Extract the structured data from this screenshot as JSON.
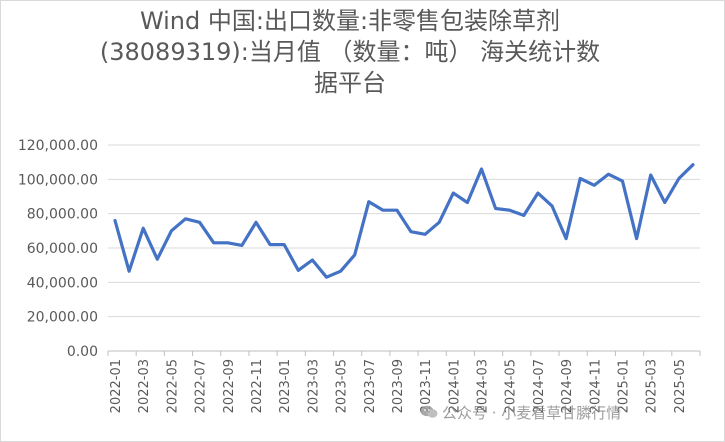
{
  "chart_data": {
    "type": "line",
    "title_lines": [
      "Wind 中国:出口数量:非零售包装除草剂",
      "(38089319):当月值 （数量：吨） 海关统计数",
      "据平台"
    ],
    "xlabel": "",
    "ylabel": "",
    "ylim": [
      0,
      120000
    ],
    "yticks": [
      "0.00",
      "20,000.00",
      "40,000.00",
      "60,000.00",
      "80,000.00",
      "100,000.00",
      "120,000.00"
    ],
    "grid": true,
    "legend": "none",
    "x": [
      "2022-01",
      "2022-02",
      "2022-03",
      "2022-04",
      "2022-05",
      "2022-06",
      "2022-07",
      "2022-08",
      "2022-09",
      "2022-10",
      "2022-11",
      "2022-12",
      "2023-01",
      "2023-02",
      "2023-03",
      "2023-04",
      "2023-05",
      "2023-06",
      "2023-07",
      "2023-08",
      "2023-09",
      "2023-10",
      "2023-11",
      "2023-12",
      "2024-01",
      "2024-02",
      "2024-03",
      "2024-04",
      "2024-05",
      "2024-06",
      "2024-07",
      "2024-08",
      "2024-09",
      "2024-10",
      "2024-11",
      "2024-12",
      "2025-01",
      "2025-02",
      "2025-03",
      "2025-04",
      "2025-05",
      "2025-06"
    ],
    "xtick_labels": [
      "2022-01",
      "2022-03",
      "2022-05",
      "2022-07",
      "2022-09",
      "2022-11",
      "2023-01",
      "2023-03",
      "2023-05",
      "2023-07",
      "2023-09",
      "2023-11",
      "2024-01",
      "2024-03",
      "2024-05",
      "2024-07",
      "2024-09",
      "2024-11",
      "2025-01",
      "2025-03",
      "2025-05"
    ],
    "series": [
      {
        "values": [
          76000,
          46500,
          71500,
          53500,
          70000,
          77000,
          75000,
          63000,
          63000,
          61500,
          75000,
          62000,
          62000,
          47000,
          53000,
          43000,
          46500,
          56000,
          87000,
          82000,
          82000,
          69500,
          68000,
          75000,
          92000,
          86500,
          106000,
          83000,
          82000,
          79000,
          92000,
          84500,
          65500,
          100500,
          96500,
          103000,
          99000,
          65500,
          102500,
          86500,
          100500,
          108500
        ],
        "color": "#4472c4"
      }
    ]
  },
  "watermark": {
    "text": "公众号 · 小麦看草甘膦行情",
    "icon": "wechat-icon"
  }
}
